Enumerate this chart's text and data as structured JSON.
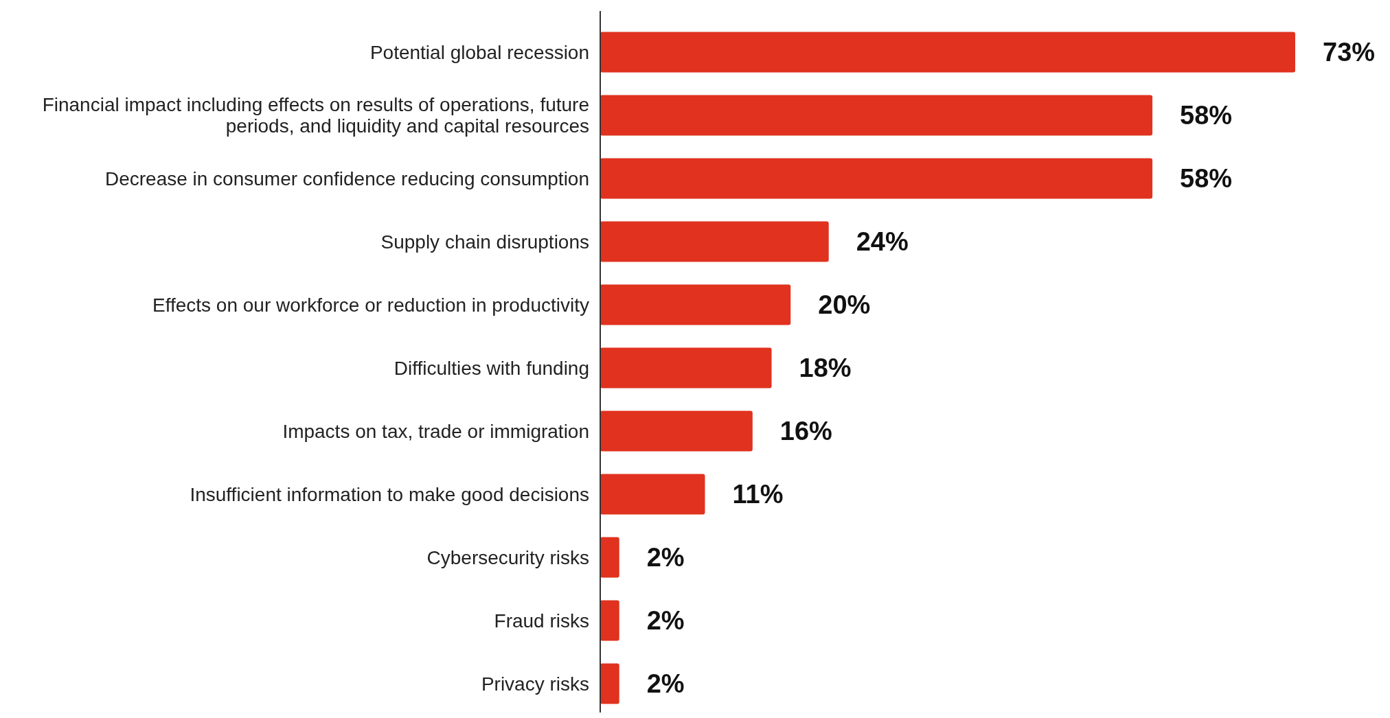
{
  "chart_data": {
    "type": "bar",
    "orientation": "horizontal",
    "data_labels": true,
    "color": "#e0321f",
    "categories": [
      "Potential global recession",
      "Financial impact including effects on results of operations, future periods, and liquidity and capital resources",
      "Decrease in consumer confidence reducing consumption",
      "Supply chain disruptions",
      "Effects on our workforce or reduction in productivity",
      "Difficulties with funding",
      "Impacts on tax, trade or immigration",
      "Insufficient information to make good decisions",
      "Cybersecurity risks",
      "Fraud risks",
      "Privacy risks"
    ],
    "values": [
      73,
      58,
      58,
      24,
      20,
      18,
      16,
      11,
      2,
      2,
      2
    ],
    "value_labels": [
      "73%",
      "58%",
      "58%",
      "24%",
      "20%",
      "18%",
      "16%",
      "11%",
      "2%",
      "2%",
      "2%"
    ]
  }
}
